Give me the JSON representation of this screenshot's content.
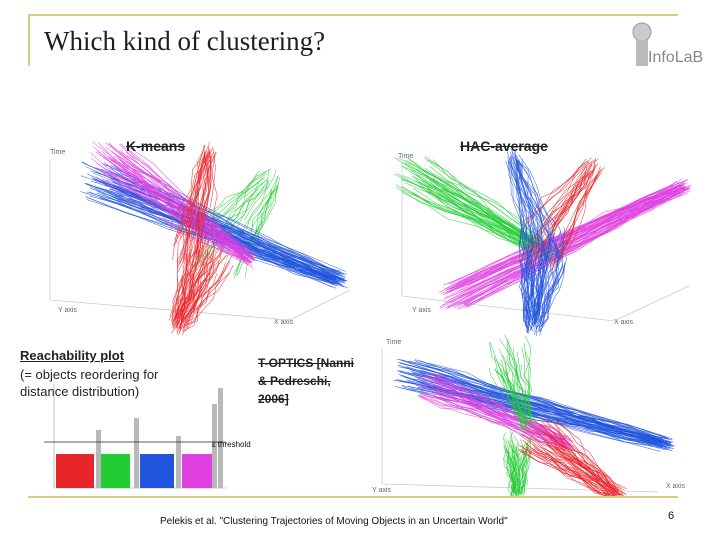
{
  "slide": {
    "title": "Which kind of clustering?",
    "logo_text": "InfoLaB",
    "page_number": "6",
    "citation": "Pelekis et al. \"Clustering Trajectories of Moving Objects in an Uncertain World\""
  },
  "panels": {
    "kmeans": {
      "label": "K-means",
      "axis_time": "Time",
      "axis_y": "Y axis",
      "axis_x": "X axis"
    },
    "hac": {
      "label": "HAC-average",
      "axis_time": "Time",
      "axis_y": "Y axis",
      "axis_x": "X axis"
    },
    "toptics": {
      "label_line1": "T-OPTICS [Nanni",
      "label_line2": "& Pedreschi,",
      "label_line3": "2006]",
      "axis_time": "Time",
      "axis_y": "Y axis",
      "axis_x": "X axis"
    }
  },
  "reachability": {
    "title": "Reachability plot",
    "desc_line1": "(= objects reordering for",
    "desc_line2": "distance distribution)",
    "threshold_label": "ε threshold"
  },
  "colors": {
    "red": "#e8262a",
    "green": "#22cc33",
    "blue": "#2255dd",
    "magenta": "#e040e0",
    "frame": "#d8d080"
  }
}
